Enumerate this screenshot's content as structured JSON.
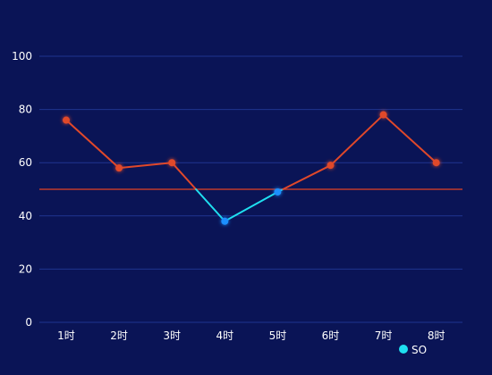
{
  "chart_data": {
    "type": "line",
    "categories": [
      "1时",
      "2时",
      "3时",
      "4时",
      "5时",
      "6时",
      "7时",
      "8时"
    ],
    "series": [
      {
        "name": "SO",
        "values": [
          76,
          58,
          60,
          38,
          49,
          59,
          78,
          60
        ]
      }
    ],
    "y_ticks": [
      "0",
      "20",
      "40",
      "60",
      "80",
      "100"
    ],
    "ylim": [
      0,
      100
    ],
    "threshold": 50,
    "grid": true,
    "legend_position": "bottom-right",
    "colors": {
      "background": "#0a1456",
      "grid": "#1f3590",
      "above_threshold": "#e0482a",
      "below_threshold": "#1fe0f0",
      "below_marker": "#1a8fff",
      "threshold_line": "#c0392b",
      "text": "#ffffff"
    }
  }
}
